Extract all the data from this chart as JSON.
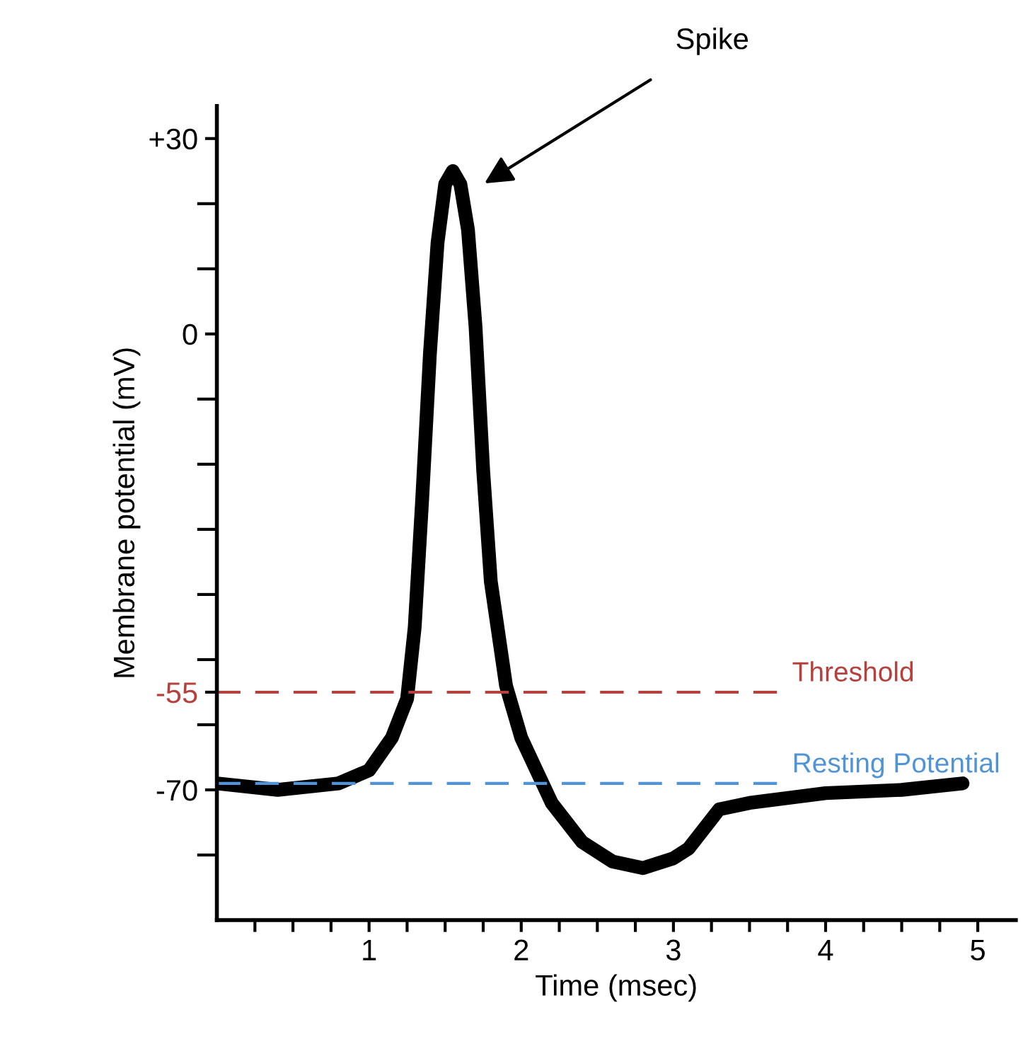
{
  "chart_data": {
    "type": "line",
    "xlabel": "Time (msec)",
    "ylabel": "Membrane potential (mV)",
    "x": [
      0,
      0.4,
      0.8,
      1.0,
      1.15,
      1.25,
      1.3,
      1.35,
      1.4,
      1.45,
      1.5,
      1.55,
      1.6,
      1.65,
      1.7,
      1.75,
      1.8,
      1.9,
      2.0,
      2.2,
      2.4,
      2.6,
      2.8,
      3.0,
      3.1,
      3.2,
      3.3,
      3.5,
      4.0,
      4.5,
      4.9
    ],
    "series": [
      {
        "color": "#000000",
        "values": [
          -69,
          -70,
          -69,
          -67,
          -62,
          -56,
          -45,
          -25,
          -3,
          14,
          23,
          25,
          23,
          16,
          1,
          -21,
          -38,
          -54,
          -62,
          -72,
          -78,
          -81,
          -82,
          -80.5,
          -79,
          -76,
          -73,
          -72,
          -70.5,
          -70,
          -69
        ]
      }
    ],
    "xlim": [
      0,
      5.25
    ],
    "ylim": [
      -90,
      35
    ],
    "xticks": [
      {
        "value": 0.25,
        "label": null
      },
      {
        "value": 0.5,
        "label": null
      },
      {
        "value": 0.75,
        "label": null
      },
      1,
      {
        "value": 1.25,
        "label": null
      },
      {
        "value": 1.5,
        "label": null
      },
      {
        "value": 1.75,
        "label": null
      },
      2,
      {
        "value": 2.25,
        "label": null
      },
      {
        "value": 2.5,
        "label": null
      },
      {
        "value": 2.75,
        "label": null
      },
      3,
      {
        "value": 3.25,
        "label": null
      },
      {
        "value": 3.5,
        "label": null
      },
      {
        "value": 3.75,
        "label": null
      },
      4,
      {
        "value": 4.25,
        "label": null
      },
      {
        "value": 4.5,
        "label": null
      },
      {
        "value": 4.75,
        "label": null
      },
      5
    ],
    "yticks": [
      {
        "value": 30,
        "label": "+30"
      },
      {
        "value": 20,
        "label": null
      },
      {
        "value": 10,
        "label": null
      },
      0,
      {
        "value": -10,
        "label": null
      },
      {
        "value": -20,
        "label": null
      },
      {
        "value": -30,
        "label": null
      },
      {
        "value": -40,
        "label": null
      },
      {
        "value": -50,
        "label": null
      },
      -55,
      {
        "value": -60,
        "label": null
      },
      -70,
      {
        "value": -80,
        "label": null
      }
    ],
    "ref_lines": [
      {
        "axis": "y",
        "value": -55,
        "label": "Threshold",
        "color": "#b5403c",
        "line_style": "dashed"
      },
      {
        "axis": "y",
        "value": -69,
        "label": "Resting Potential",
        "color": "#4f93d8",
        "line_style": "dashed"
      }
    ],
    "annotations": [
      "Spike"
    ],
    "grid": false,
    "marker": "none",
    "line_style": "solid"
  }
}
